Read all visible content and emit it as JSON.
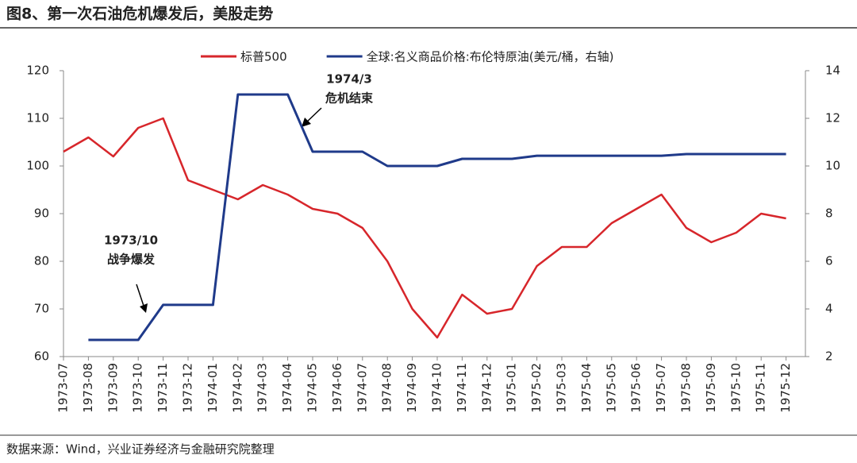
{
  "chart_data": {
    "type": "line",
    "title": "图8、第一次石油危机爆发后，美股走势",
    "source": "数据来源：Wind，兴业证券经济与金融研究院整理",
    "categories": [
      "1973-07",
      "1973-08",
      "1973-09",
      "1973-10",
      "1973-11",
      "1973-12",
      "1974-01",
      "1974-02",
      "1974-03",
      "1974-04",
      "1974-05",
      "1974-06",
      "1974-07",
      "1974-08",
      "1974-09",
      "1974-10",
      "1974-11",
      "1974-12",
      "1975-01",
      "1975-02",
      "1975-03",
      "1975-04",
      "1975-05",
      "1975-06",
      "1975-07",
      "1975-08",
      "1975-09",
      "1975-10",
      "1975-11",
      "1975-12"
    ],
    "series": [
      {
        "name": "标普500",
        "color": "#d7262b",
        "values": [
          103,
          106,
          102,
          108,
          110,
          97,
          95,
          93,
          96,
          94,
          91,
          90,
          87,
          80,
          70,
          64,
          73,
          69,
          70,
          79,
          83,
          83,
          88,
          91,
          94,
          87,
          84,
          86,
          90,
          89
        ]
      },
      {
        "name": "全球:名义商品价格:布伦特原油(美元/桶，右轴)",
        "color": "#1f3a8a",
        "axis": "y2",
        "values": [
          null,
          2.7,
          2.7,
          2.7,
          4.17,
          4.17,
          4.17,
          13,
          13,
          13,
          10.6,
          10.6,
          10.6,
          10,
          10,
          10,
          10.3,
          10.3,
          10.3,
          10.43,
          10.43,
          10.43,
          10.43,
          10.43,
          10.43,
          10.5,
          10.5,
          10.5,
          10.5,
          10.5
        ]
      }
    ],
    "ylim": [
      60,
      120
    ],
    "yticks": [
      60,
      70,
      80,
      90,
      100,
      110,
      120
    ],
    "y2lim": [
      2,
      14
    ],
    "y2ticks": [
      2,
      4,
      6,
      8,
      10,
      12,
      14
    ],
    "legend": "top",
    "annotations": [
      {
        "lines": [
          "1973/10",
          "战争爆发"
        ]
      },
      {
        "lines": [
          "1974/3",
          "危机结束"
        ]
      }
    ]
  }
}
